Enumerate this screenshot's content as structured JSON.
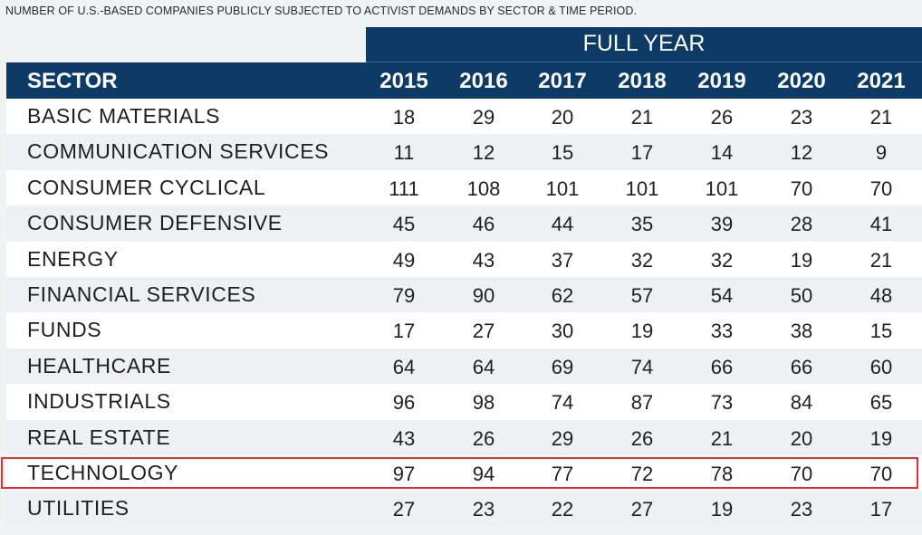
{
  "caption": "NUMBER OF U.S.-BASED COMPANIES PUBLICLY SUBJECTED TO ACTIVIST DEMANDS BY SECTOR & TIME PERIOD.",
  "header": {
    "group_label": "FULL YEAR",
    "sector_label": "SECTOR"
  },
  "colors": {
    "header_bg": "#0d3b66",
    "row_alt_bg": "#eef0f3",
    "highlight_border": "#e8302e"
  },
  "highlighted_row": "TECHNOLOGY",
  "chart_data": {
    "type": "table",
    "title": "NUMBER OF U.S.-BASED COMPANIES PUBLICLY SUBJECTED TO ACTIVIST DEMANDS BY SECTOR & TIME PERIOD.",
    "column_group": "FULL YEAR",
    "row_header": "SECTOR",
    "columns": [
      "2015",
      "2016",
      "2017",
      "2018",
      "2019",
      "2020",
      "2021"
    ],
    "rows": [
      {
        "sector": "BASIC MATERIALS",
        "values": [
          18,
          29,
          20,
          21,
          26,
          23,
          21
        ]
      },
      {
        "sector": "COMMUNICATION SERVICES",
        "values": [
          11,
          12,
          15,
          17,
          14,
          12,
          9
        ]
      },
      {
        "sector": "CONSUMER CYCLICAL",
        "values": [
          111,
          108,
          101,
          101,
          101,
          70,
          70
        ]
      },
      {
        "sector": "CONSUMER DEFENSIVE",
        "values": [
          45,
          46,
          44,
          35,
          39,
          28,
          41
        ]
      },
      {
        "sector": "ENERGY",
        "values": [
          49,
          43,
          37,
          32,
          32,
          19,
          21
        ]
      },
      {
        "sector": "FINANCIAL SERVICES",
        "values": [
          79,
          90,
          62,
          57,
          54,
          50,
          48
        ]
      },
      {
        "sector": "FUNDS",
        "values": [
          17,
          27,
          30,
          19,
          33,
          38,
          15
        ]
      },
      {
        "sector": "HEALTHCARE",
        "values": [
          64,
          64,
          69,
          74,
          66,
          66,
          60
        ]
      },
      {
        "sector": "INDUSTRIALS",
        "values": [
          96,
          98,
          74,
          87,
          73,
          84,
          65
        ]
      },
      {
        "sector": "REAL ESTATE",
        "values": [
          43,
          26,
          29,
          26,
          21,
          20,
          19
        ]
      },
      {
        "sector": "TECHNOLOGY",
        "values": [
          97,
          94,
          77,
          72,
          78,
          70,
          70
        ]
      },
      {
        "sector": "UTILITIES",
        "values": [
          27,
          23,
          22,
          27,
          19,
          23,
          17
        ]
      }
    ]
  }
}
